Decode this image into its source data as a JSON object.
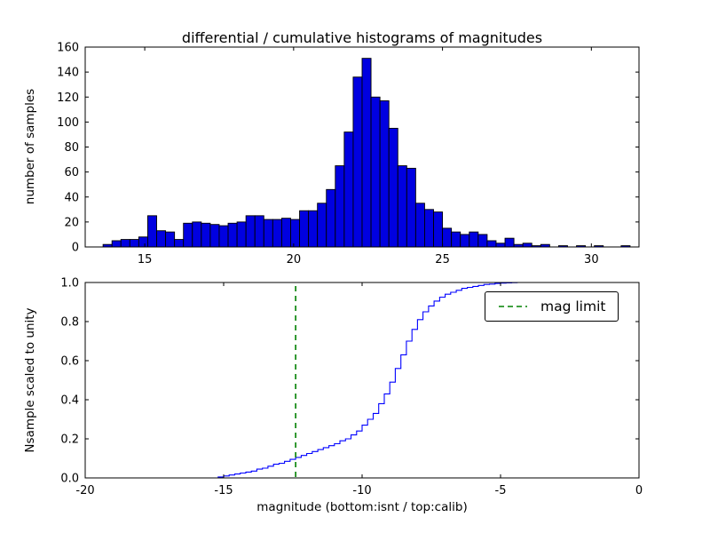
{
  "figure": {
    "background": "#ffffff"
  },
  "chart_data": [
    {
      "type": "bar",
      "subtype": "histogram",
      "title": "differential / cumulative histograms of magnitudes",
      "ylabel": "number of samples",
      "xlabel": "",
      "xlim": [
        13.0,
        31.6
      ],
      "ylim": [
        0,
        160
      ],
      "xticks": [
        15,
        20,
        25,
        30
      ],
      "xtick_labels": [
        "15",
        "20",
        "25",
        "30"
      ],
      "yticks": [
        0,
        20,
        40,
        60,
        80,
        100,
        120,
        140,
        160
      ],
      "ytick_labels": [
        "0",
        "20",
        "40",
        "60",
        "80",
        "100",
        "120",
        "140",
        "160"
      ],
      "bar_color": "#0000e0",
      "bar_edge": "#000000",
      "bin_start": 13.3,
      "bin_width": 0.3,
      "counts": [
        0,
        2,
        5,
        6,
        6,
        8,
        25,
        13,
        12,
        6,
        19,
        20,
        19,
        18,
        17,
        19,
        20,
        25,
        25,
        22,
        22,
        23,
        22,
        29,
        29,
        35,
        46,
        65,
        92,
        136,
        151,
        120,
        117,
        95,
        65,
        63,
        35,
        30,
        28,
        15,
        12,
        10,
        12,
        10,
        5,
        3,
        7,
        2,
        3,
        1,
        2,
        0,
        1,
        0,
        1,
        0,
        1,
        0,
        0,
        1
      ],
      "grid": false
    },
    {
      "type": "line",
      "subtype": "cumulative-step",
      "title": "",
      "ylabel": "Nsample scaled to unity",
      "xlabel": "magnitude (bottom:isnt / top:calib)",
      "xlim": [
        -20,
        0
      ],
      "ylim": [
        0.0,
        1.0
      ],
      "xticks": [
        -20,
        -15,
        -10,
        -5,
        0
      ],
      "xtick_labels": [
        "-20",
        "-15",
        "-10",
        "-5",
        "0"
      ],
      "yticks": [
        0.0,
        0.2,
        0.4,
        0.6,
        0.8,
        1.0
      ],
      "ytick_labels": [
        "0.0",
        "0.2",
        "0.4",
        "0.6",
        "0.8",
        "1.0"
      ],
      "line_color": "#0000ff",
      "mag_limit": {
        "x": -12.4,
        "color": "#008000",
        "style": "dashed",
        "label": "mag limit"
      },
      "legend": {
        "label": "mag limit",
        "position": "upper right"
      },
      "cumulative": {
        "x": [
          -15.4,
          -15.2,
          -15.0,
          -14.8,
          -14.6,
          -14.4,
          -14.2,
          -14.0,
          -13.8,
          -13.6,
          -13.4,
          -13.2,
          -13.0,
          -12.8,
          -12.6,
          -12.4,
          -12.2,
          -12.0,
          -11.8,
          -11.6,
          -11.4,
          -11.2,
          -11.0,
          -10.8,
          -10.6,
          -10.4,
          -10.2,
          -10.0,
          -9.8,
          -9.6,
          -9.4,
          -9.2,
          -9.0,
          -8.8,
          -8.6,
          -8.4,
          -8.2,
          -8.0,
          -7.8,
          -7.6,
          -7.4,
          -7.2,
          -7.0,
          -6.8,
          -6.6,
          -6.4,
          -6.2,
          -6.0,
          -5.8,
          -5.6,
          -5.4,
          -5.2,
          -5.0,
          -4.8,
          -4.6,
          -4.4,
          -4.2
        ],
        "y": [
          0.0,
          0.005,
          0.01,
          0.015,
          0.02,
          0.025,
          0.03,
          0.035,
          0.045,
          0.05,
          0.06,
          0.07,
          0.075,
          0.085,
          0.095,
          0.105,
          0.115,
          0.125,
          0.135,
          0.145,
          0.155,
          0.165,
          0.175,
          0.19,
          0.2,
          0.22,
          0.24,
          0.27,
          0.3,
          0.33,
          0.38,
          0.43,
          0.49,
          0.56,
          0.63,
          0.7,
          0.76,
          0.81,
          0.85,
          0.88,
          0.905,
          0.925,
          0.94,
          0.95,
          0.96,
          0.97,
          0.975,
          0.98,
          0.985,
          0.99,
          0.992,
          0.995,
          0.997,
          0.998,
          0.999,
          1.0,
          1.0
        ]
      },
      "grid": false
    }
  ]
}
